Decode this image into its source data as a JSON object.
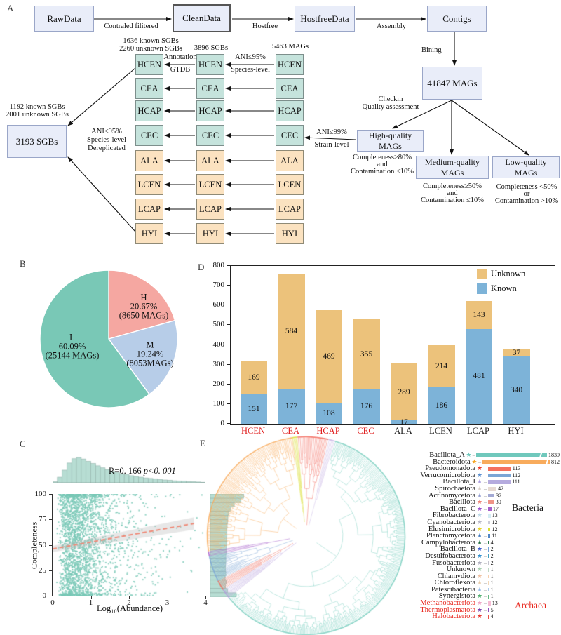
{
  "panels": {
    "a": "A",
    "b": "B",
    "c": "C",
    "d": "D",
    "e": "E"
  },
  "flowchart": {
    "top_boxes": [
      "RawData",
      "CleanData",
      "HostfreeData",
      "Contigs"
    ],
    "top_arrow_labels": [
      "Contraled filitered",
      "Hostfree",
      "Assembly"
    ],
    "bining_label": "Bining",
    "mags_box": "41847 MAGs",
    "checkm_lines": [
      "Checkm",
      "Quality assessment"
    ],
    "quality_boxes": [
      {
        "label": "High-quality MAGs",
        "criteria": [
          "Completeness≥80%",
          "and",
          "Contamination ≤10%"
        ]
      },
      {
        "label": "Medium-quality MAGs",
        "criteria": [
          "Completeness≥50%",
          "and",
          "Contamination ≤10%"
        ]
      },
      {
        "label": "Low-quality MAGs",
        "criteria": [
          "Completeness <50%",
          "or",
          "Contamination >10%"
        ]
      }
    ],
    "ani99_lines": [
      "ANI≤99%",
      "Strain-level"
    ],
    "column_headers": {
      "left": [
        "1636 known SGBs",
        "2260 unknown SGBs"
      ],
      "middle": "3896 SGBs",
      "right": "5463 MAGs"
    },
    "ani95_lines": [
      "ANI≤95%",
      "Species-level"
    ],
    "annotation_lines": [
      "Annotation",
      "GTDB"
    ],
    "cohorts": [
      "HCEN",
      "CEA",
      "HCAP",
      "CEC",
      "ALA",
      "LCEN",
      "LCAP",
      "HYI"
    ],
    "teal_cohort_count": 4,
    "dereplication": {
      "summary_lines": [
        "1192 known SGBs",
        "2001 unknown SGBs"
      ],
      "box": "3193 SGBs",
      "side_lines": [
        "ANI≤95%",
        "Species-level",
        "Dereplicated"
      ]
    }
  },
  "chart_data": [
    {
      "id": "quality_pie",
      "type": "pie",
      "direction": "clockwise",
      "start": "top",
      "slices": [
        {
          "label": "H",
          "pct": 20.67,
          "count": "(8650 MAGs)",
          "color": "#f5a7a1"
        },
        {
          "label": "M",
          "pct": 19.24,
          "count": "(8053MAGs)",
          "color": "#b7cde8"
        },
        {
          "label": "L",
          "pct": 60.09,
          "count": "(25144 MAGs)",
          "color": "#79c8b6"
        }
      ]
    },
    {
      "id": "cohort_bars",
      "type": "bar",
      "stacked": true,
      "categories": [
        "HCEN",
        "CEA",
        "HCAP",
        "CEC",
        "ALA",
        "LCEN",
        "LCAP",
        "HYI"
      ],
      "category_label_colors": [
        "#e01f1f",
        "#e01f1f",
        "#e01f1f",
        "#e01f1f",
        "#1a1a1a",
        "#1a1a1a",
        "#1a1a1a",
        "#1a1a1a"
      ],
      "series": [
        {
          "name": "Known",
          "color": "#7db3d8",
          "values": [
            151,
            177,
            108,
            176,
            17,
            186,
            481,
            340
          ]
        },
        {
          "name": "Unknown",
          "color": "#ecc27b",
          "values": [
            169,
            584,
            469,
            355,
            289,
            214,
            143,
            37
          ]
        }
      ],
      "ylim": [
        0,
        800
      ],
      "ytick_step": 100,
      "legend_order": [
        "Unknown",
        "Known"
      ]
    },
    {
      "id": "abundance_scatter",
      "type": "scatter",
      "xlabel": "Log₁₀(Abundance)",
      "ylabel": "Completeness",
      "r_label": "R=0. 166",
      "p_label": "p<0. 001",
      "xlim": [
        0,
        4
      ],
      "ylim": [
        0,
        100
      ],
      "xticks": [
        0,
        1,
        2,
        3,
        4
      ],
      "yticks": [
        0,
        25,
        50,
        75,
        100
      ],
      "point_color": "#79c8b6",
      "hist_color": "#b7ddd3",
      "trend": {
        "x0": 0,
        "y0": 46,
        "x1": 3.7,
        "y1": 71,
        "color": "#ee8a78"
      },
      "marginal_x": [
        0.04,
        0.22,
        0.5,
        0.78,
        0.95,
        1.0,
        0.94,
        0.85,
        0.76,
        0.67,
        0.59,
        0.52,
        0.46,
        0.41,
        0.36,
        0.32,
        0.28,
        0.25,
        0.22,
        0.19,
        0.17,
        0.15,
        0.13,
        0.11,
        0.1,
        0.08,
        0.07,
        0.06,
        0.05,
        0.04,
        0.03,
        0.02
      ],
      "marginal_y": [
        1.0,
        0.92,
        0.72,
        0.6,
        0.55,
        0.53,
        0.52,
        0.51,
        0.5,
        0.5,
        0.49,
        0.49,
        0.48,
        0.48,
        0.47,
        0.47,
        0.46,
        0.46,
        0.47,
        0.45,
        0.48,
        0.46,
        0.52,
        0.78
      ]
    },
    {
      "id": "phylum_legend",
      "type": "bar",
      "orientation": "horizontal",
      "groups": [
        {
          "name": "Bacteria",
          "color": "#1a1a1a"
        },
        {
          "name": "Archaea",
          "color": "#e8261d"
        }
      ],
      "entries": [
        {
          "label": "Bacillota_A",
          "value": 1839,
          "bar_color": "#6fc8bc",
          "star_color": "#6fc8bc",
          "group": "Bacteria"
        },
        {
          "label": "Bacteroidota",
          "value": 812,
          "bar_color": "#f8ab5c",
          "star_color": "#f5a623",
          "group": "Bacteria"
        },
        {
          "label": "Pseudomonadota",
          "value": 113,
          "bar_color": "#f4705e",
          "star_color": "#ef3b2c",
          "group": "Bacteria"
        },
        {
          "label": "Verrucomicrobiota",
          "value": 112,
          "bar_color": "#7ba6d6",
          "star_color": "#5b8fd0",
          "group": "Bacteria"
        },
        {
          "label": "Bacillota_I",
          "value": 111,
          "bar_color": "#b5abde",
          "star_color": "#a99be0",
          "group": "Bacteria"
        },
        {
          "label": "Spirochaetota",
          "value": 42,
          "bar_color": "#e7dad2",
          "star_color": "#d8cfc8",
          "group": "Bacteria"
        },
        {
          "label": "Actinomycetota",
          "value": 32,
          "bar_color": "#a3a9d4",
          "star_color": "#8f9ad0",
          "group": "Bacteria"
        },
        {
          "label": "Bacillota",
          "value": 30,
          "bar_color": "#ef9386",
          "star_color": "#ef8578",
          "group": "Bacteria"
        },
        {
          "label": "Bacillota_C",
          "value": 17,
          "bar_color": "#a55ecb",
          "star_color": "#9b4fd0",
          "group": "Bacteria"
        },
        {
          "label": "Fibrobacterota",
          "value": 13,
          "bar_color": "#d4ecf4",
          "star_color": "#bcd8e8",
          "group": "Bacteria"
        },
        {
          "label": "Cyanobacteriota",
          "value": 12,
          "bar_color": "#ccccd9",
          "star_color": "#b8b8c8",
          "group": "Bacteria"
        },
        {
          "label": "Elusimicrobiota",
          "value": 12,
          "bar_color": "#dade2e",
          "star_color": "#e8d428",
          "group": "Bacteria"
        },
        {
          "label": "Planctomycetota",
          "value": 11,
          "bar_color": "#4f86c6",
          "star_color": "#3c78c0",
          "group": "Bacteria"
        },
        {
          "label": "Campylobacterota",
          "value": 4,
          "bar_color": "#2e7d4f",
          "star_color": "#1e6e3e",
          "group": "Bacteria"
        },
        {
          "label": "Bacillota_B",
          "value": 2,
          "bar_color": "#6f9fd8",
          "star_color": "#3f5fd0",
          "group": "Bacteria"
        },
        {
          "label": "Desulfobacterota",
          "value": 2,
          "bar_color": "#3f9fc0",
          "star_color": "#2f8fd0",
          "group": "Bacteria"
        },
        {
          "label": "Fusobacteriota",
          "value": 2,
          "bar_color": "#c4c4cf",
          "star_color": "#b0b0c0",
          "group": "Bacteria"
        },
        {
          "label": "Unknown",
          "value": 1,
          "bar_color": "#bcd8c4",
          "star_color": "#a8d0b0",
          "group": "Bacteria"
        },
        {
          "label": "Chlamydiota",
          "value": 1,
          "bar_color": "#f6cfae",
          "star_color": "#f0c0a0",
          "group": "Bacteria"
        },
        {
          "label": "Chloroflexota",
          "value": 1,
          "bar_color": "#f2d8b8",
          "star_color": "#e8cca8",
          "group": "Bacteria"
        },
        {
          "label": "Patescibacteria",
          "value": 1,
          "bar_color": "#a9c8ea",
          "star_color": "#90b8e8",
          "group": "Bacteria"
        },
        {
          "label": "Synergistota",
          "value": 1,
          "bar_color": "#66b884",
          "star_color": "#50b070",
          "group": "Bacteria"
        },
        {
          "label": "Methanobacteriota",
          "value": 13,
          "bar_color": "#f6bcd4",
          "star_color": "#f0a8c8",
          "group": "Archaea"
        },
        {
          "label": "Thermoplasmatota",
          "value": 5,
          "bar_color": "#8e4fc0",
          "star_color": "#7a3fb0",
          "group": "Archaea"
        },
        {
          "label": "Halobacteriota",
          "value": 4,
          "bar_color": "#ea5348",
          "star_color": "#e83830",
          "group": "Archaea"
        }
      ]
    }
  ],
  "tree": {
    "sectors": [
      {
        "color": "#dade2e",
        "a0": -8,
        "a1": -5
      },
      {
        "color": "#f2695c",
        "a0": -5,
        "a1": 13
      },
      {
        "color": "#cbb7e6",
        "a0": 13,
        "a1": 17
      },
      {
        "color": "#7ccfc0",
        "a0": 17,
        "a1": 231
      },
      {
        "color": "#b39ddb",
        "a0": 231,
        "a1": 237
      },
      {
        "color": "#ef6a5c",
        "a0": 237,
        "a1": 243
      },
      {
        "color": "#7ba6d6",
        "a0": 243,
        "a1": 258
      },
      {
        "color": "#a55ecb",
        "a0": 258,
        "a1": 261
      },
      {
        "color": "#f8ab5c",
        "a0": 261,
        "a1": 352
      }
    ]
  }
}
